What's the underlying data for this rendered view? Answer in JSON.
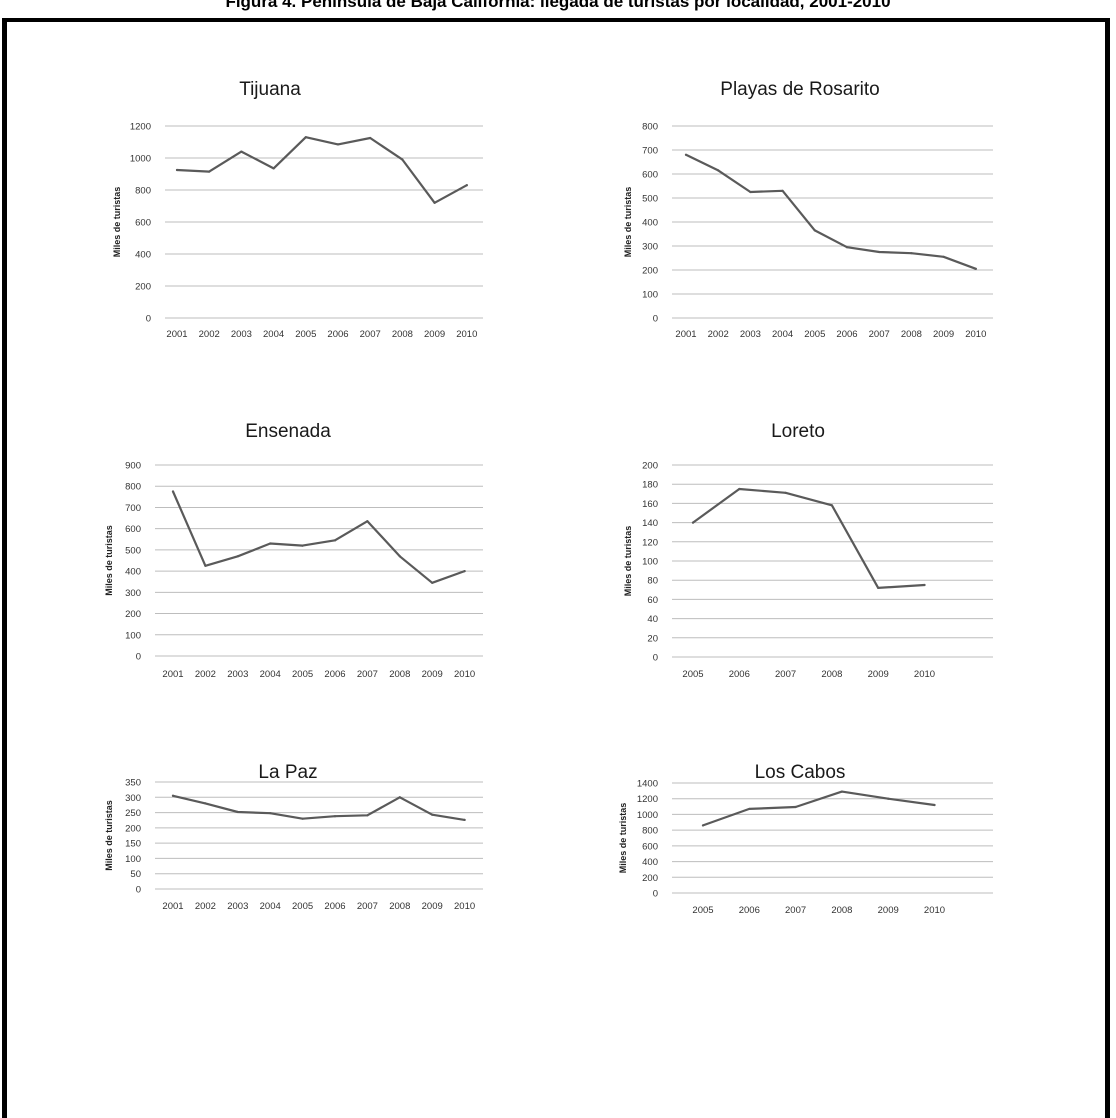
{
  "figure": {
    "title": "Figura 4. Península de Baja California: llegada de turistas por localidad, 2001-2010"
  },
  "colors": {
    "line": "#5a5a5a",
    "grid": "#bdbdbd",
    "frame": "#000000"
  },
  "chart_data": [
    {
      "type": "line",
      "title": "Tijuana",
      "xlabel": "",
      "ylabel": "Miles de turistas",
      "categories": [
        "2001",
        "2002",
        "2003",
        "2004",
        "2005",
        "2006",
        "2007",
        "2008",
        "2009",
        "2010"
      ],
      "values": [
        925,
        915,
        1040,
        935,
        1130,
        1085,
        1125,
        990,
        720,
        830
      ],
      "ylim": [
        0,
        1200
      ],
      "yticks": [
        0,
        200,
        400,
        600,
        800,
        1000,
        1200
      ],
      "grid": true
    },
    {
      "type": "line",
      "title": "Playas de Rosarito",
      "xlabel": "",
      "ylabel": "Miles de turistas",
      "categories": [
        "2001",
        "2002",
        "2003",
        "2004",
        "2005",
        "2006",
        "2007",
        "2008",
        "2009",
        "2010"
      ],
      "values": [
        680,
        615,
        525,
        530,
        365,
        295,
        275,
        270,
        255,
        205
      ],
      "ylim": [
        0,
        800
      ],
      "yticks": [
        0,
        100,
        200,
        300,
        400,
        500,
        600,
        700,
        800
      ],
      "grid": true
    },
    {
      "type": "line",
      "title": "Ensenada",
      "xlabel": "",
      "ylabel": "Miles de turistas",
      "categories": [
        "2001",
        "2002",
        "2003",
        "2004",
        "2005",
        "2006",
        "2007",
        "2008",
        "2009",
        "2010"
      ],
      "values": [
        775,
        425,
        470,
        530,
        520,
        545,
        635,
        470,
        345,
        400
      ],
      "ylim": [
        0,
        900
      ],
      "yticks": [
        0,
        100,
        200,
        300,
        400,
        500,
        600,
        700,
        800,
        900
      ],
      "grid": true
    },
    {
      "type": "line",
      "title": "Loreto",
      "xlabel": "",
      "ylabel": "Miles de turistas",
      "categories": [
        "2005",
        "2006",
        "2007",
        "2008",
        "2009",
        "2010"
      ],
      "values": [
        140,
        175,
        171,
        158,
        72,
        75
      ],
      "ylim": [
        0,
        200
      ],
      "yticks": [
        0,
        20,
        40,
        60,
        80,
        100,
        120,
        140,
        160,
        180,
        200
      ],
      "grid": true
    },
    {
      "type": "line",
      "title": "La Paz",
      "xlabel": "",
      "ylabel": "Miles de turistas",
      "categories": [
        "2001",
        "2002",
        "2003",
        "2004",
        "2005",
        "2006",
        "2007",
        "2008",
        "2009",
        "2010"
      ],
      "values": [
        305,
        280,
        252,
        248,
        230,
        238,
        241,
        300,
        243,
        226
      ],
      "ylim": [
        0,
        350
      ],
      "yticks": [
        0,
        50,
        100,
        150,
        200,
        250,
        300,
        350
      ],
      "grid": true
    },
    {
      "type": "line",
      "title": "Los Cabos",
      "xlabel": "",
      "ylabel": "Miles de turistas",
      "categories": [
        "2005",
        "2006",
        "2007",
        "2008",
        "2009",
        "2010"
      ],
      "values": [
        860,
        1070,
        1095,
        1290,
        1200,
        1120
      ],
      "ylim": [
        0,
        1400
      ],
      "yticks": [
        0,
        200,
        400,
        600,
        800,
        1000,
        1200,
        1400
      ],
      "grid": true
    }
  ]
}
